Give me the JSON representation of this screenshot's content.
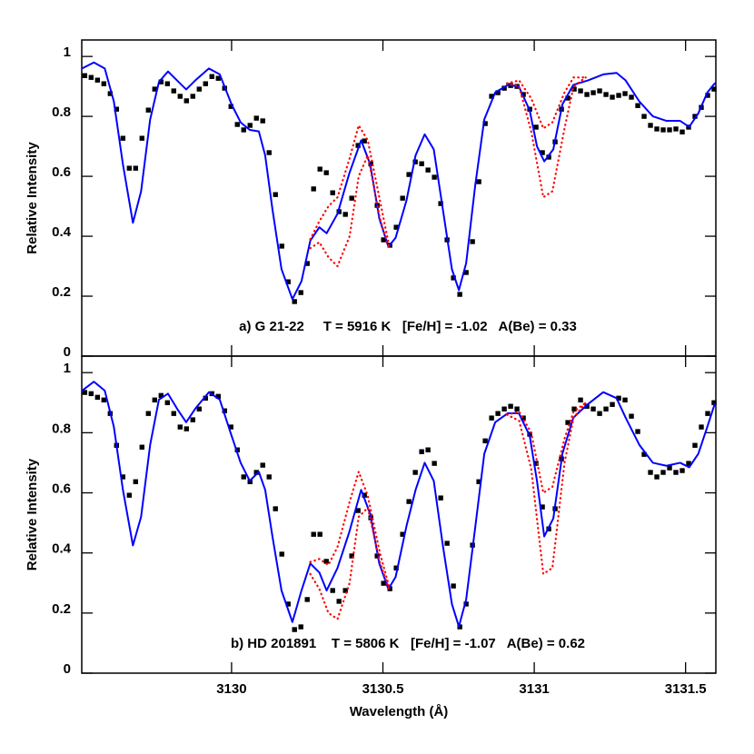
{
  "chart_data": [
    {
      "type": "line",
      "annotation": "a) G 21-22     T = 5916 K   [Fe/H] = -1.02   A(Be) = 0.33",
      "ylabel": "Relative Intensity",
      "xlim": [
        3129.505,
        3131.6
      ],
      "ylim": [
        0,
        1.055
      ],
      "xticks": [
        3130,
        3130.5,
        3131,
        3131.5
      ],
      "xtick_labels": false,
      "yticks": [
        0,
        0.2,
        0.4,
        0.6,
        0.8,
        1
      ],
      "series": [
        {
          "marker": "square",
          "color": "#000000",
          "x": [
            3129.515,
            3129.536,
            3129.557,
            3129.578,
            3129.599,
            3129.62,
            3129.641,
            3129.662,
            3129.683,
            3129.704,
            3129.725,
            3129.746,
            3129.767,
            3129.788,
            3129.809,
            3129.83,
            3129.851,
            3129.872,
            3129.893,
            3129.914,
            3129.935,
            3129.956,
            3129.977,
            3129.998,
            3130.019,
            3130.04,
            3130.061,
            3130.082,
            3130.103,
            3130.124,
            3130.145,
            3130.166,
            3130.187,
            3130.208,
            3130.229,
            3130.25,
            3130.271,
            3130.292,
            3130.313,
            3130.334,
            3130.355,
            3130.376,
            3130.397,
            3130.418,
            3130.439,
            3130.46,
            3130.481,
            3130.502,
            3130.523,
            3130.544,
            3130.565,
            3130.586,
            3130.607,
            3130.628,
            3130.649,
            3130.67,
            3130.691,
            3130.712,
            3130.733,
            3130.754,
            3130.775,
            3130.796,
            3130.817,
            3130.838,
            3130.859,
            3130.88,
            3130.901,
            3130.922,
            3130.943,
            3130.964,
            3130.985,
            3131.006,
            3131.027,
            3131.048,
            3131.069,
            3131.09,
            3131.111,
            3131.132,
            3131.153,
            3131.174,
            3131.195,
            3131.216,
            3131.237,
            3131.258,
            3131.279,
            3131.3,
            3131.321,
            3131.342,
            3131.363,
            3131.384,
            3131.405,
            3131.426,
            3131.447,
            3131.468,
            3131.489,
            3131.51,
            3131.531,
            3131.552,
            3131.573,
            3131.594
          ],
          "values": [
            0.936,
            0.93,
            0.921,
            0.909,
            0.876,
            0.824,
            0.727,
            0.627,
            0.627,
            0.727,
            0.821,
            0.891,
            0.915,
            0.909,
            0.885,
            0.867,
            0.852,
            0.867,
            0.891,
            0.909,
            0.933,
            0.927,
            0.894,
            0.833,
            0.773,
            0.755,
            0.77,
            0.794,
            0.785,
            0.679,
            0.539,
            0.367,
            0.248,
            0.182,
            0.212,
            0.309,
            0.558,
            0.624,
            0.612,
            0.545,
            0.482,
            0.473,
            0.527,
            0.703,
            0.718,
            0.642,
            0.503,
            0.388,
            0.37,
            0.43,
            0.527,
            0.606,
            0.648,
            0.642,
            0.621,
            0.597,
            0.509,
            0.388,
            0.261,
            0.206,
            0.279,
            0.382,
            0.582,
            0.776,
            0.867,
            0.879,
            0.894,
            0.903,
            0.9,
            0.873,
            0.824,
            0.764,
            0.679,
            0.664,
            0.715,
            0.824,
            0.861,
            0.891,
            0.885,
            0.873,
            0.879,
            0.885,
            0.873,
            0.864,
            0.87,
            0.876,
            0.864,
            0.836,
            0.8,
            0.77,
            0.758,
            0.755,
            0.755,
            0.758,
            0.748,
            0.764,
            0.8,
            0.83,
            0.87,
            0.891
          ]
        },
        {
          "color": "#0000ff",
          "x": [
            3129.506,
            3129.545,
            3129.581,
            3129.611,
            3129.641,
            3129.674,
            3129.701,
            3129.731,
            3129.76,
            3129.79,
            3129.82,
            3129.85,
            3129.88,
            3129.925,
            3129.961,
            3130.0,
            3130.03,
            3130.06,
            3130.09,
            3130.111,
            3130.135,
            3130.165,
            3130.201,
            3130.231,
            3130.26,
            3130.29,
            3130.314,
            3130.35,
            3130.389,
            3130.428,
            3130.458,
            3130.488,
            3130.518,
            3130.542,
            3130.578,
            3130.608,
            3130.638,
            3130.668,
            3130.698,
            3130.728,
            3130.751,
            3130.775,
            3130.805,
            3130.835,
            3130.871,
            3130.913,
            3130.949,
            3130.985,
            3131.009,
            3131.033,
            3131.063,
            3131.093,
            3131.129,
            3131.177,
            3131.228,
            3131.272,
            3131.302,
            3131.347,
            3131.392,
            3131.437,
            3131.482,
            3131.512,
            3131.542,
            3131.572,
            3131.596
          ],
          "values": [
            0.96,
            0.98,
            0.96,
            0.85,
            0.64,
            0.445,
            0.55,
            0.79,
            0.915,
            0.95,
            0.92,
            0.89,
            0.92,
            0.96,
            0.94,
            0.84,
            0.78,
            0.755,
            0.75,
            0.67,
            0.49,
            0.29,
            0.19,
            0.25,
            0.385,
            0.43,
            0.41,
            0.475,
            0.61,
            0.72,
            0.64,
            0.46,
            0.365,
            0.395,
            0.52,
            0.67,
            0.74,
            0.69,
            0.49,
            0.29,
            0.22,
            0.31,
            0.57,
            0.79,
            0.88,
            0.905,
            0.9,
            0.82,
            0.7,
            0.65,
            0.69,
            0.84,
            0.905,
            0.92,
            0.94,
            0.945,
            0.92,
            0.85,
            0.8,
            0.785,
            0.785,
            0.765,
            0.81,
            0.88,
            0.91
          ]
        },
        {
          "color": "#ff0000",
          "dash": "dotted",
          "x": [
            3130.26,
            3130.29,
            3130.32,
            3130.35,
            3130.39,
            3130.42,
            3130.45,
            3130.49,
            3130.52,
            3130.7,
            3130.91,
            3130.95,
            3130.99,
            3131.03,
            3131.06,
            3131.1,
            3131.13,
            3131.17
          ],
          "values": [
            0.39,
            0.45,
            0.5,
            0.53,
            0.66,
            0.77,
            0.72,
            0.52,
            0.37,
            null,
            0.91,
            0.92,
            0.86,
            0.76,
            0.78,
            0.88,
            0.93,
            0.93
          ]
        },
        {
          "color": "#ff0000",
          "dash": "dotted",
          "x": [
            3130.26,
            3130.29,
            3130.32,
            3130.35,
            3130.39,
            3130.42,
            3130.45,
            3130.49,
            3130.52,
            3130.7,
            3130.91,
            3130.95,
            3130.99,
            3131.03,
            3131.06,
            3131.1,
            3131.13,
            3131.17
          ],
          "values": [
            0.36,
            0.38,
            0.33,
            0.3,
            0.4,
            0.6,
            0.67,
            0.46,
            0.36,
            null,
            0.91,
            0.9,
            0.75,
            0.53,
            0.55,
            0.76,
            0.9,
            0.93
          ]
        }
      ]
    },
    {
      "type": "line",
      "annotation": "b) HD 201891    T = 5806 K   [Fe/H] = -1.07   A(Be) = 0.62",
      "ylabel": "Relative Intensity",
      "xlabel": "Wavelength (Å)",
      "xlim": [
        3129.505,
        3131.6
      ],
      "ylim": [
        0,
        1.055
      ],
      "xticks": [
        3130,
        3130.5,
        3131,
        3131.5
      ],
      "xtick_labels": true,
      "yticks": [
        0,
        0.2,
        0.4,
        0.6,
        0.8,
        1
      ],
      "series": [
        {
          "marker": "square",
          "color": "#000000",
          "x": [
            3129.515,
            3129.536,
            3129.557,
            3129.578,
            3129.599,
            3129.62,
            3129.641,
            3129.662,
            3129.683,
            3129.704,
            3129.725,
            3129.746,
            3129.767,
            3129.788,
            3129.809,
            3129.83,
            3129.851,
            3129.872,
            3129.893,
            3129.914,
            3129.935,
            3129.956,
            3129.977,
            3129.998,
            3130.019,
            3130.04,
            3130.061,
            3130.082,
            3130.103,
            3130.124,
            3130.145,
            3130.166,
            3130.187,
            3130.208,
            3130.229,
            3130.25,
            3130.271,
            3130.292,
            3130.313,
            3130.334,
            3130.355,
            3130.376,
            3130.397,
            3130.418,
            3130.439,
            3130.46,
            3130.481,
            3130.502,
            3130.523,
            3130.544,
            3130.565,
            3130.586,
            3130.607,
            3130.628,
            3130.649,
            3130.67,
            3130.691,
            3130.712,
            3130.733,
            3130.754,
            3130.775,
            3130.796,
            3130.817,
            3130.838,
            3130.859,
            3130.88,
            3130.901,
            3130.922,
            3130.943,
            3130.964,
            3130.985,
            3131.006,
            3131.027,
            3131.048,
            3131.069,
            3131.09,
            3131.111,
            3131.132,
            3131.153,
            3131.174,
            3131.195,
            3131.216,
            3131.237,
            3131.258,
            3131.279,
            3131.3,
            3131.321,
            3131.342,
            3131.363,
            3131.384,
            3131.405,
            3131.426,
            3131.447,
            3131.468,
            3131.489,
            3131.51,
            3131.531,
            3131.552,
            3131.573,
            3131.594
          ],
          "values": [
            0.934,
            0.93,
            0.918,
            0.909,
            0.864,
            0.758,
            0.653,
            0.592,
            0.637,
            0.752,
            0.864,
            0.909,
            0.924,
            0.9,
            0.864,
            0.819,
            0.813,
            0.843,
            0.879,
            0.915,
            0.93,
            0.921,
            0.873,
            0.819,
            0.743,
            0.653,
            0.637,
            0.668,
            0.692,
            0.653,
            0.547,
            0.396,
            0.23,
            0.145,
            0.154,
            0.245,
            0.462,
            0.462,
            0.372,
            0.275,
            0.239,
            0.275,
            0.39,
            0.541,
            0.592,
            0.517,
            0.39,
            0.299,
            0.281,
            0.35,
            0.462,
            0.571,
            0.668,
            0.737,
            0.743,
            0.698,
            0.583,
            0.432,
            0.29,
            0.154,
            0.23,
            0.426,
            0.637,
            0.773,
            0.849,
            0.864,
            0.879,
            0.888,
            0.879,
            0.849,
            0.795,
            0.698,
            0.553,
            0.48,
            0.547,
            0.713,
            0.834,
            0.879,
            0.909,
            0.888,
            0.879,
            0.864,
            0.879,
            0.894,
            0.915,
            0.909,
            0.855,
            0.804,
            0.728,
            0.668,
            0.653,
            0.668,
            0.683,
            0.668,
            0.674,
            0.698,
            0.758,
            0.819,
            0.864,
            0.9
          ]
        },
        {
          "color": "#0000ff",
          "x": [
            3129.506,
            3129.545,
            3129.581,
            3129.611,
            3129.641,
            3129.674,
            3129.701,
            3129.731,
            3129.76,
            3129.79,
            3129.82,
            3129.85,
            3129.88,
            3129.925,
            3129.961,
            3130.0,
            3130.03,
            3130.06,
            3130.09,
            3130.111,
            3130.135,
            3130.165,
            3130.201,
            3130.231,
            3130.26,
            3130.29,
            3130.314,
            3130.35,
            3130.389,
            3130.428,
            3130.458,
            3130.488,
            3130.518,
            3130.542,
            3130.578,
            3130.608,
            3130.638,
            3130.668,
            3130.698,
            3130.728,
            3130.751,
            3130.775,
            3130.805,
            3130.835,
            3130.871,
            3130.913,
            3130.949,
            3130.985,
            3131.009,
            3131.033,
            3131.063,
            3131.093,
            3131.129,
            3131.177,
            3131.228,
            3131.272,
            3131.302,
            3131.347,
            3131.392,
            3131.437,
            3131.482,
            3131.512,
            3131.542,
            3131.572,
            3131.596
          ],
          "values": [
            0.94,
            0.97,
            0.94,
            0.82,
            0.61,
            0.425,
            0.52,
            0.76,
            0.91,
            0.93,
            0.88,
            0.835,
            0.88,
            0.935,
            0.91,
            0.79,
            0.7,
            0.64,
            0.67,
            0.61,
            0.455,
            0.275,
            0.17,
            0.275,
            0.365,
            0.335,
            0.275,
            0.35,
            0.47,
            0.61,
            0.53,
            0.365,
            0.28,
            0.32,
            0.49,
            0.61,
            0.7,
            0.64,
            0.425,
            0.23,
            0.155,
            0.245,
            0.485,
            0.73,
            0.835,
            0.865,
            0.865,
            0.79,
            0.64,
            0.455,
            0.515,
            0.73,
            0.85,
            0.895,
            0.935,
            0.915,
            0.85,
            0.76,
            0.7,
            0.69,
            0.7,
            0.685,
            0.73,
            0.82,
            0.895
          ]
        },
        {
          "color": "#ff0000",
          "dash": "dotted",
          "x": [
            3130.26,
            3130.29,
            3130.32,
            3130.35,
            3130.39,
            3130.42,
            3130.45,
            3130.49,
            3130.52,
            3130.7,
            3130.91,
            3130.95,
            3130.99,
            3131.03,
            3131.06,
            3131.1,
            3131.13,
            3131.17
          ],
          "values": [
            0.37,
            0.38,
            0.36,
            0.42,
            0.57,
            0.67,
            0.59,
            0.4,
            0.29,
            null,
            0.86,
            0.87,
            0.8,
            0.6,
            0.62,
            0.78,
            0.87,
            0.9
          ]
        },
        {
          "color": "#ff0000",
          "dash": "dotted",
          "x": [
            3130.26,
            3130.29,
            3130.32,
            3130.35,
            3130.39,
            3130.42,
            3130.45,
            3130.49,
            3130.52,
            3130.7,
            3130.91,
            3130.95,
            3130.99,
            3131.03,
            3131.06,
            3131.1,
            3131.13,
            3131.17
          ],
          "values": [
            0.33,
            0.28,
            0.2,
            0.18,
            0.3,
            0.52,
            0.55,
            0.37,
            0.28,
            null,
            0.86,
            0.84,
            0.68,
            0.33,
            0.35,
            0.7,
            0.85,
            0.9
          ]
        }
      ]
    }
  ]
}
